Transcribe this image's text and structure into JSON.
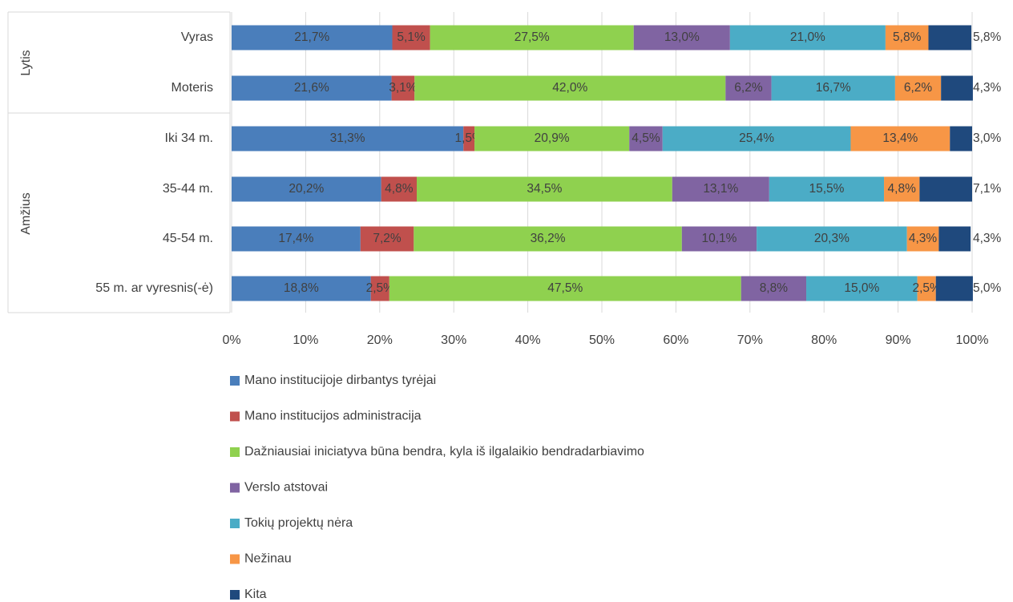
{
  "chart_data": {
    "type": "stacked_bar_horizontal",
    "groups": [
      {
        "name": "Lytis",
        "categories": [
          "Vyras",
          "Moteris"
        ]
      },
      {
        "name": "Amžius",
        "categories": [
          "Iki 34 m.",
          "35-44 m.",
          "45-54 m.",
          "55 m. ar vyresnis(-ė)"
        ]
      }
    ],
    "series": [
      {
        "name": "Mano institucijoje dirbantys tyrėjai",
        "color": "#4a7ebb",
        "label_color": "#ffffff",
        "values": [
          21.7,
          21.6,
          31.3,
          20.2,
          17.4,
          18.8
        ],
        "value_labels": [
          "21,7%",
          "21,6%",
          "31,3%",
          "20,2%",
          "17,4%",
          "18,8%"
        ]
      },
      {
        "name": "Mano institucijos administracija",
        "color": "#c0504d",
        "label_color": "#ffffff",
        "values": [
          5.1,
          3.1,
          1.5,
          4.8,
          7.2,
          2.5
        ],
        "value_labels": [
          "5,1%",
          "3,1%",
          "1,5%",
          "4,8%",
          "7,2%",
          "2,5%"
        ]
      },
      {
        "name": "Dažniausiai iniciatyva būna bendra, kyla iš ilgalaikio bendradarbiavimo",
        "color": "#8fd14f",
        "label_color": "#000000",
        "values": [
          27.5,
          42.0,
          20.9,
          34.5,
          36.2,
          47.5
        ],
        "value_labels": [
          "27,5%",
          "42,0%",
          "20,9%",
          "34,5%",
          "36,2%",
          "47,5%"
        ]
      },
      {
        "name": "Verslo atstovai",
        "color": "#8064a2",
        "label_color": "#ffffff",
        "values": [
          13.0,
          6.2,
          4.5,
          13.1,
          10.1,
          8.8
        ],
        "value_labels": [
          "13,0%",
          "6,2%",
          "4,5%",
          "13,1%",
          "10,1%",
          "8,8%"
        ]
      },
      {
        "name": "Tokių projektų nėra",
        "color": "#4bacc6",
        "label_color": "#ffffff",
        "values": [
          21.0,
          16.7,
          25.4,
          15.5,
          20.3,
          15.0
        ],
        "value_labels": [
          "21,0%",
          "16,7%",
          "25,4%",
          "15,5%",
          "20,3%",
          "15,0%"
        ]
      },
      {
        "name": "Nežinau",
        "color": "#f79646",
        "label_color": "#000000",
        "values": [
          5.8,
          6.2,
          13.4,
          4.8,
          4.3,
          2.5
        ],
        "value_labels": [
          "5,8%",
          "6,2%",
          "13,4%",
          "4,8%",
          "4,3%",
          "2,5%"
        ]
      },
      {
        "name": "Kita",
        "color": "#1f497d",
        "label_color": "#000000",
        "labels_outside": true,
        "values": [
          5.8,
          4.3,
          3.0,
          7.1,
          4.3,
          5.0
        ],
        "value_labels": [
          "5,8%",
          "4,3%",
          "3,0%",
          "7,1%",
          "4,3%",
          "5,0%"
        ]
      }
    ],
    "xlim": [
      0,
      100
    ],
    "xticks": [
      {
        "value": 0,
        "label": "0%"
      },
      {
        "value": 10,
        "label": "10%"
      },
      {
        "value": 20,
        "label": "20%"
      },
      {
        "value": 30,
        "label": "30%"
      },
      {
        "value": 40,
        "label": "40%"
      },
      {
        "value": 50,
        "label": "50%"
      },
      {
        "value": 60,
        "label": "60%"
      },
      {
        "value": 70,
        "label": "70%"
      },
      {
        "value": 80,
        "label": "80%"
      },
      {
        "value": 90,
        "label": "90%"
      },
      {
        "value": 100,
        "label": "100%"
      }
    ],
    "grid": true,
    "legend": "bottom"
  }
}
